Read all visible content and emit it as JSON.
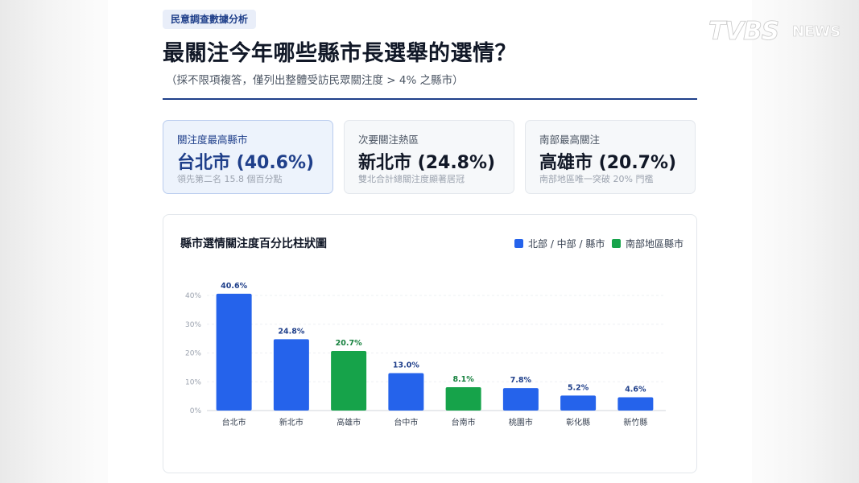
{
  "tag": "民意調查數據分析",
  "headline": "最關注今年哪些縣市長選舉的選情？",
  "subline": "（採不限項複答，僅列出整體受訪民眾關注度 > 4% 之縣市）",
  "brand": {
    "logo_text": "TVBS",
    "news_text": "NEWS"
  },
  "cards": [
    {
      "label": "關注度最高縣市",
      "value": "台北市 (40.6%)",
      "note": "領先第二名 15.8 個百分點"
    },
    {
      "label": "次要關注熱區",
      "value": "新北市 (24.8%)",
      "note": "雙北合計總關注度顯著居冠"
    },
    {
      "label": "南部最高關注",
      "value": "高雄市 (20.7%)",
      "note": "南部地區唯一突破 20% 門檻"
    }
  ],
  "colors": {
    "north": "#2563eb",
    "south": "#16a34a",
    "accent": "#1f3f8a"
  },
  "chart_data": {
    "type": "bar",
    "title": "縣市選情關注度百分比柱狀圖",
    "categories": [
      "台北市",
      "新北市",
      "高雄市",
      "台中市",
      "台南市",
      "桃園市",
      "彰化縣",
      "新竹縣"
    ],
    "values": [
      40.6,
      24.8,
      20.7,
      13.0,
      8.1,
      7.8,
      5.2,
      4.6
    ],
    "value_labels": [
      "40.6%",
      "24.8%",
      "20.7%",
      "13.0%",
      "8.1%",
      "7.8%",
      "5.2%",
      "4.6%"
    ],
    "groups": [
      "north",
      "north",
      "south",
      "north",
      "south",
      "north",
      "north",
      "north"
    ],
    "legend": [
      {
        "key": "north",
        "name": "北部 / 中部 / 縣市"
      },
      {
        "key": "south",
        "name": "南部地區縣市"
      }
    ],
    "yticks": [
      0,
      10,
      20,
      30,
      40
    ],
    "ytick_labels": [
      "0%",
      "10%",
      "20%",
      "30%",
      "40%"
    ],
    "ylim": [
      0,
      40
    ],
    "grid": true,
    "legend_position": "top-right"
  }
}
